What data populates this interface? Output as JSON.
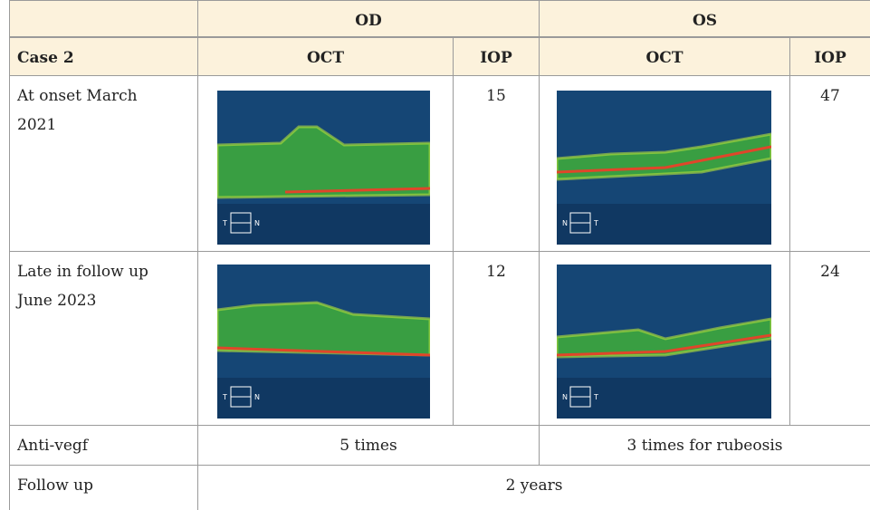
{
  "table": {
    "header": [
      "OD",
      "OS"
    ],
    "subheader": [
      "Case 2",
      "OCT",
      "IOP",
      "OCT",
      "IOP"
    ],
    "rows": [
      {
        "label": [
          "At onset March",
          "2021"
        ],
        "od_iop": 15,
        "os_iop": 47
      },
      {
        "label": [
          "Late in follow up",
          "June 2023"
        ],
        "od_iop": 12,
        "os_iop": 24
      }
    ],
    "anti_vegf": {
      "label": "Anti-vegf",
      "od": "5 times",
      "os": "3 times for rubeosis"
    },
    "follow_up": {
      "label": "Follow up",
      "value": "2 years"
    }
  },
  "oct_markers": [
    [
      "T",
      "N"
    ],
    [
      "N",
      "T"
    ],
    [
      "T",
      "N"
    ],
    [
      "N",
      "T"
    ]
  ]
}
